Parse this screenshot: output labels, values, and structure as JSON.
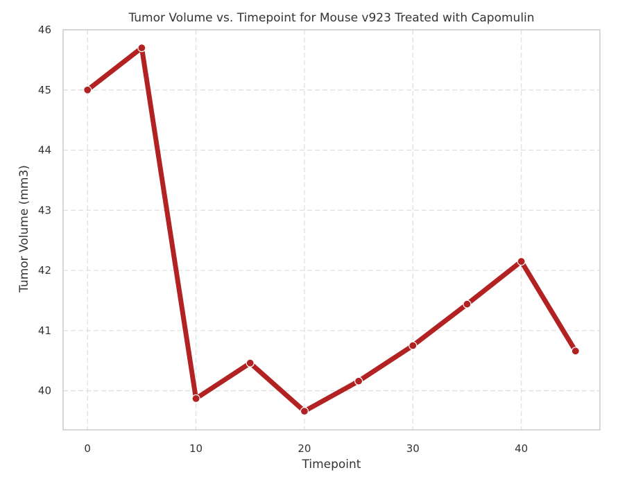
{
  "chart_data": {
    "type": "line",
    "title": "Tumor Volume vs. Timepoint for Mouse v923 Treated with Capomulin",
    "xlabel": "Timepoint",
    "ylabel": "Tumor Volume (mm3)",
    "x": [
      0,
      5,
      10,
      15,
      20,
      25,
      30,
      35,
      40,
      45
    ],
    "series": [
      {
        "values": [
          45.0,
          45.7,
          39.87,
          40.46,
          39.66,
          40.16,
          40.75,
          41.44,
          42.15,
          40.66
        ]
      }
    ],
    "xlim": [
      -2.25,
      47.25
    ],
    "ylim": [
      39.35,
      46.0
    ],
    "xticks": [
      0,
      10,
      20,
      30,
      40
    ],
    "yticks": [
      40,
      41,
      42,
      43,
      44,
      45,
      46
    ],
    "grid": true,
    "line_color": "#b22222",
    "marker_face": "#b22222",
    "marker_edge": "#ffffff",
    "grid_color": "#dddddd",
    "frame_color": "#cccccc"
  }
}
